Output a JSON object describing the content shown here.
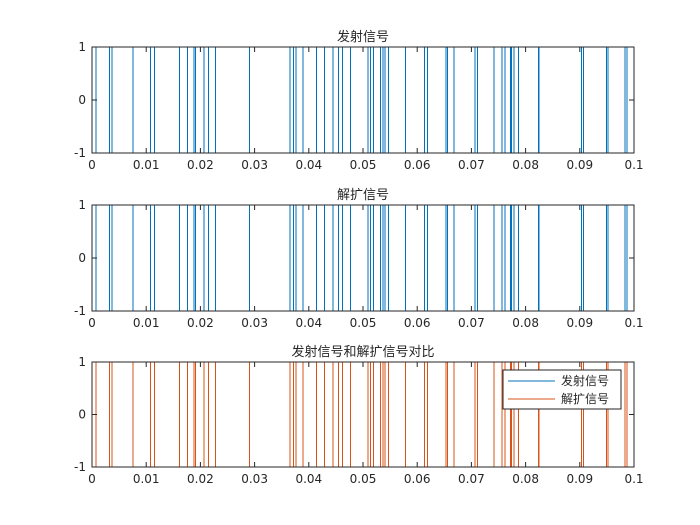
{
  "chart_data": [
    {
      "type": "line",
      "title": "发射信号",
      "xlim": [
        0,
        0.1
      ],
      "ylim": [
        -1,
        1
      ],
      "xticks": [
        "0",
        "0.01",
        "0.02",
        "0.03",
        "0.04",
        "0.05",
        "0.06",
        "0.07",
        "0.08",
        "0.09",
        "0.1"
      ],
      "yticks": [
        "-1",
        "0",
        "1"
      ],
      "grid": false,
      "step": true,
      "transitions": [
        0.0007,
        0.0032,
        0.0037,
        0.0076,
        0.0108,
        0.0115,
        0.0161,
        0.0176,
        0.0188,
        0.0191,
        0.0207,
        0.0215,
        0.0228,
        0.0291,
        0.0365,
        0.0372,
        0.0376,
        0.0389,
        0.0414,
        0.0429,
        0.0445,
        0.0455,
        0.0462,
        0.0477,
        0.0509,
        0.0514,
        0.0519,
        0.0532,
        0.0537,
        0.0541,
        0.0547,
        0.0578,
        0.0613,
        0.0619,
        0.0653,
        0.0656,
        0.0668,
        0.0707,
        0.0711,
        0.0742,
        0.0756,
        0.0762,
        0.0772,
        0.0774,
        0.0779,
        0.0787,
        0.0824,
        0.0825,
        0.0903,
        0.0907,
        0.0949,
        0.0952,
        0.0983,
        0.0987
      ],
      "series": [
        {
          "color": "#0072bd",
          "x": [
            0,
            0.1
          ],
          "start": 1
        }
      ]
    },
    {
      "type": "line",
      "title": "解扩信号",
      "xlim": [
        0,
        0.1
      ],
      "ylim": [
        -1,
        1
      ],
      "xticks": [
        "0",
        "0.01",
        "0.02",
        "0.03",
        "0.04",
        "0.05",
        "0.06",
        "0.07",
        "0.08",
        "0.09",
        "0.1"
      ],
      "yticks": [
        "-1",
        "0",
        "1"
      ],
      "grid": false,
      "step": true,
      "series": [
        {
          "color": "#0072bd",
          "x": [
            0,
            0.1
          ],
          "start": 1
        }
      ]
    },
    {
      "type": "line",
      "title": "发射信号和解扩信号对比",
      "xlim": [
        0,
        0.1
      ],
      "ylim": [
        -1,
        1
      ],
      "xticks": [
        "0",
        "0.01",
        "0.02",
        "0.03",
        "0.04",
        "0.05",
        "0.06",
        "0.07",
        "0.08",
        "0.09",
        "0.1"
      ],
      "yticks": [
        "-1",
        "0",
        "1"
      ],
      "grid": false,
      "step": true,
      "legend_position": "top-right",
      "series": [
        {
          "name": "发射信号",
          "color": "#0072bd",
          "x": [
            0,
            0.1
          ],
          "start": 1
        },
        {
          "name": "解扩信号",
          "color": "#d95319",
          "x": [
            0,
            0.1
          ],
          "start": 1
        }
      ]
    }
  ]
}
